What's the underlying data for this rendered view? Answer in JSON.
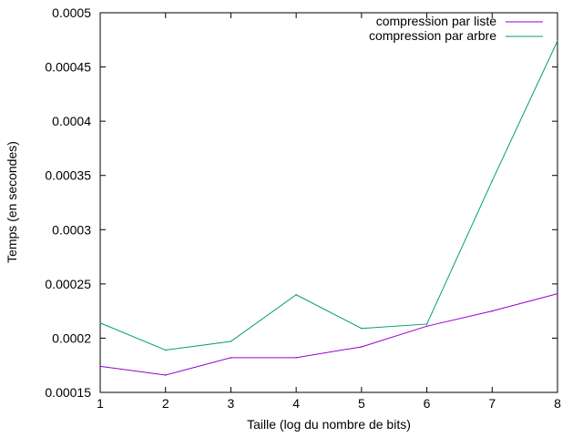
{
  "chart_data": {
    "type": "line",
    "xlabel": "Taille (log du nombre de bits)",
    "ylabel": "Temps (en secondes)",
    "xlim": [
      1,
      8
    ],
    "ylim": [
      0.00015,
      0.0005
    ],
    "x_ticks": [
      "1",
      "2",
      "3",
      "4",
      "5",
      "6",
      "7",
      "8"
    ],
    "y_ticks": [
      "0.00015",
      "0.0002",
      "0.00025",
      "0.0003",
      "0.00035",
      "0.0004",
      "0.00045",
      "0.0005"
    ],
    "grid": false,
    "legend_position": "top-right",
    "x": [
      1,
      2,
      3,
      4,
      5,
      6,
      7,
      8
    ],
    "series": [
      {
        "name": "compression par liste",
        "color": "#9400d3",
        "values": [
          0.000174,
          0.000166,
          0.000182,
          0.000182,
          0.000192,
          0.000211,
          0.000225,
          0.000241
        ]
      },
      {
        "name": "compression par arbre",
        "color": "#009e73",
        "values": [
          0.000214,
          0.000189,
          0.000197,
          0.00024,
          0.000209,
          0.000213,
          0.000345,
          0.000474
        ]
      }
    ]
  }
}
